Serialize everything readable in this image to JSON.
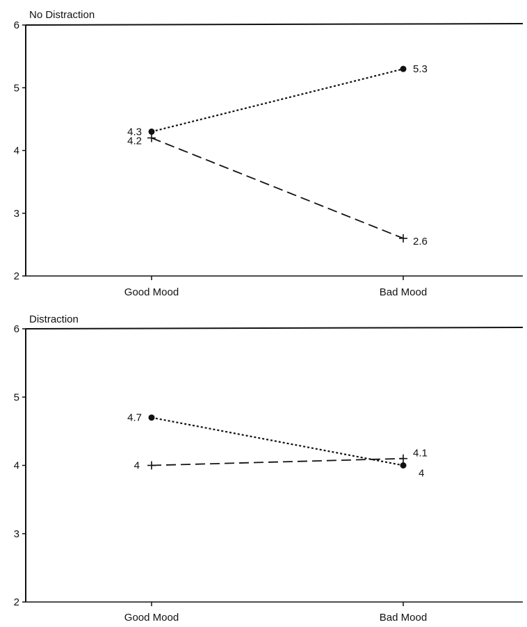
{
  "chart_data": [
    {
      "type": "line",
      "title": "No Distraction",
      "categories": [
        "Good Mood",
        "Bad Mood"
      ],
      "ylim": [
        2,
        6
      ],
      "yticks": [
        "2",
        "3",
        "4",
        "5",
        "6"
      ],
      "grid": false,
      "series": [
        {
          "values": [
            4.3,
            5.3
          ],
          "value_labels": [
            "4.3",
            "5.3"
          ],
          "marker": "circle",
          "line_style": "dotted"
        },
        {
          "values": [
            4.2,
            2.6
          ],
          "value_labels": [
            "4.2",
            "2.6"
          ],
          "marker": "plus",
          "line_style": "dashed"
        }
      ]
    },
    {
      "type": "line",
      "title": "Distraction",
      "categories": [
        "Good Mood",
        "Bad Mood"
      ],
      "ylim": [
        2,
        6
      ],
      "yticks": [
        "2",
        "3",
        "4",
        "5",
        "6"
      ],
      "grid": false,
      "series": [
        {
          "values": [
            4.7,
            4.0
          ],
          "value_labels": [
            "4.7",
            "4"
          ],
          "marker": "circle",
          "line_style": "dotted"
        },
        {
          "values": [
            4.0,
            4.1
          ],
          "value_labels": [
            "4",
            "4.1"
          ],
          "marker": "plus",
          "line_style": "dashed"
        }
      ]
    }
  ]
}
